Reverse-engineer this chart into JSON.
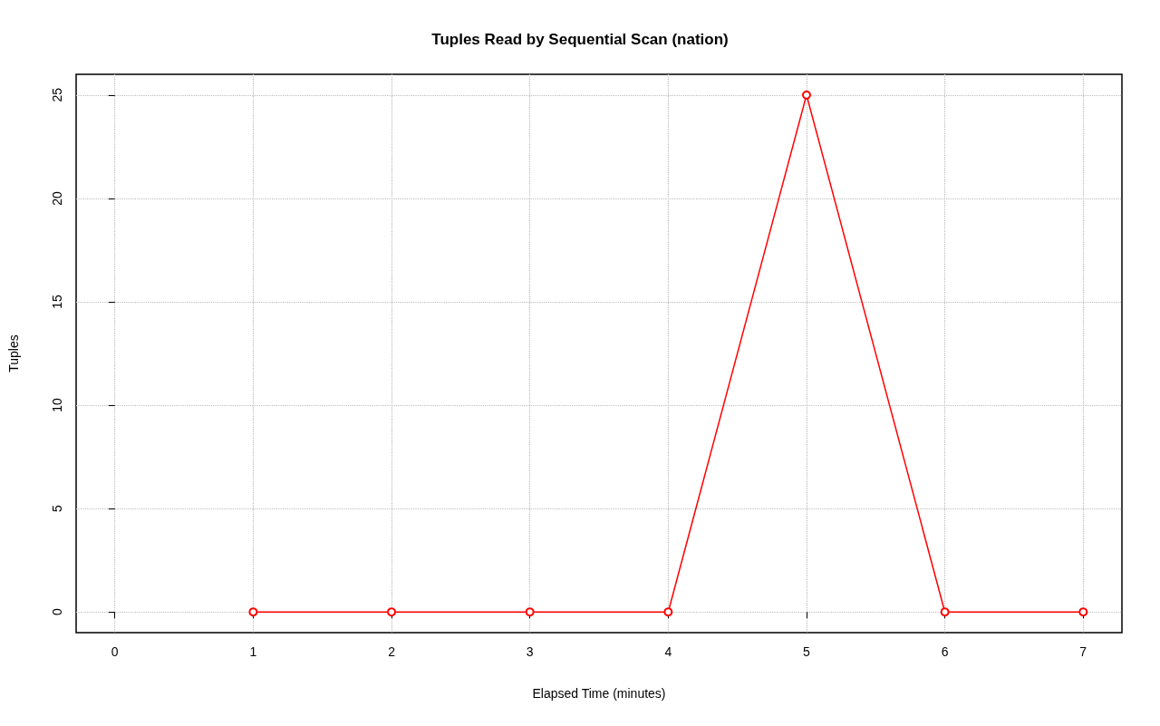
{
  "chart_data": {
    "type": "line",
    "title": "Tuples Read by Sequential Scan (nation)",
    "xlabel": "Elapsed Time (minutes)",
    "ylabel": "Tuples",
    "x": [
      1,
      2,
      3,
      4,
      5,
      6,
      7
    ],
    "series": [
      {
        "color": "#ff0000",
        "values": [
          0,
          0,
          0,
          0,
          25,
          0,
          0
        ]
      }
    ],
    "xlim": [
      -0.28,
      7.28
    ],
    "xticks": [
      0,
      1,
      2,
      3,
      4,
      5,
      6,
      7
    ],
    "ylim": [
      -1,
      26
    ],
    "yticks": [
      0,
      5,
      10,
      15,
      20,
      25
    ],
    "grid": true,
    "marker": "circle",
    "line_style": "solid"
  }
}
